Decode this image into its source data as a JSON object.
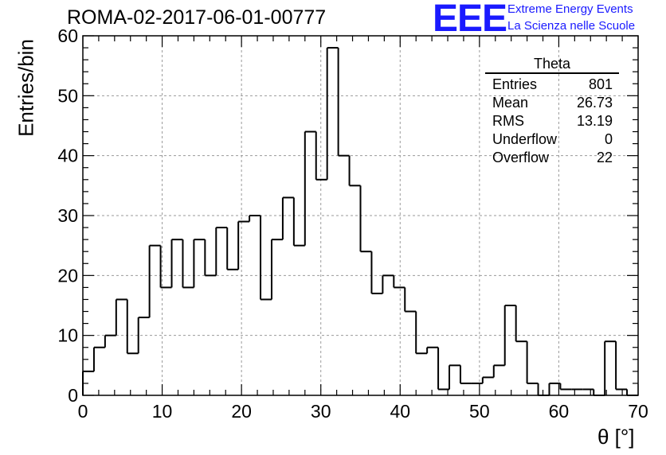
{
  "title": "ROMA-02-2017-06-01-00777",
  "logo": {
    "mark": "EEE",
    "line1": "Extreme Energy Events",
    "line2": "La Scienza nelle Scuole",
    "color": "#1a1aff"
  },
  "stats_box": {
    "name": "Theta",
    "rows": [
      {
        "label": "Entries",
        "value": "801"
      },
      {
        "label": "Mean",
        "value": "26.73"
      },
      {
        "label": "RMS",
        "value": "13.19"
      },
      {
        "label": "Underflow",
        "value": "0"
      },
      {
        "label": "Overflow",
        "value": "22"
      }
    ]
  },
  "chart_data": {
    "type": "bar",
    "subtype": "histogram",
    "xlabel": "θ [°]",
    "ylabel": "Entries/bin",
    "xlim": [
      0,
      70
    ],
    "ylim": [
      0,
      60
    ],
    "bin_width": 1.4,
    "x_ticks": [
      0,
      10,
      20,
      30,
      40,
      50,
      60,
      70
    ],
    "y_ticks": [
      0,
      10,
      20,
      30,
      40,
      50,
      60
    ],
    "grid": true,
    "line_color": "#000000",
    "values": [
      4,
      8,
      10,
      16,
      7,
      13,
      25,
      18,
      26,
      18,
      26,
      20,
      28,
      21,
      29,
      30,
      16,
      26,
      33,
      25,
      44,
      36,
      58,
      40,
      35,
      24,
      17,
      20,
      18,
      14,
      7,
      8,
      1,
      5,
      2,
      2,
      3,
      5,
      15,
      9,
      2,
      0,
      2,
      1,
      1,
      1,
      0,
      9,
      1,
      0
    ]
  }
}
